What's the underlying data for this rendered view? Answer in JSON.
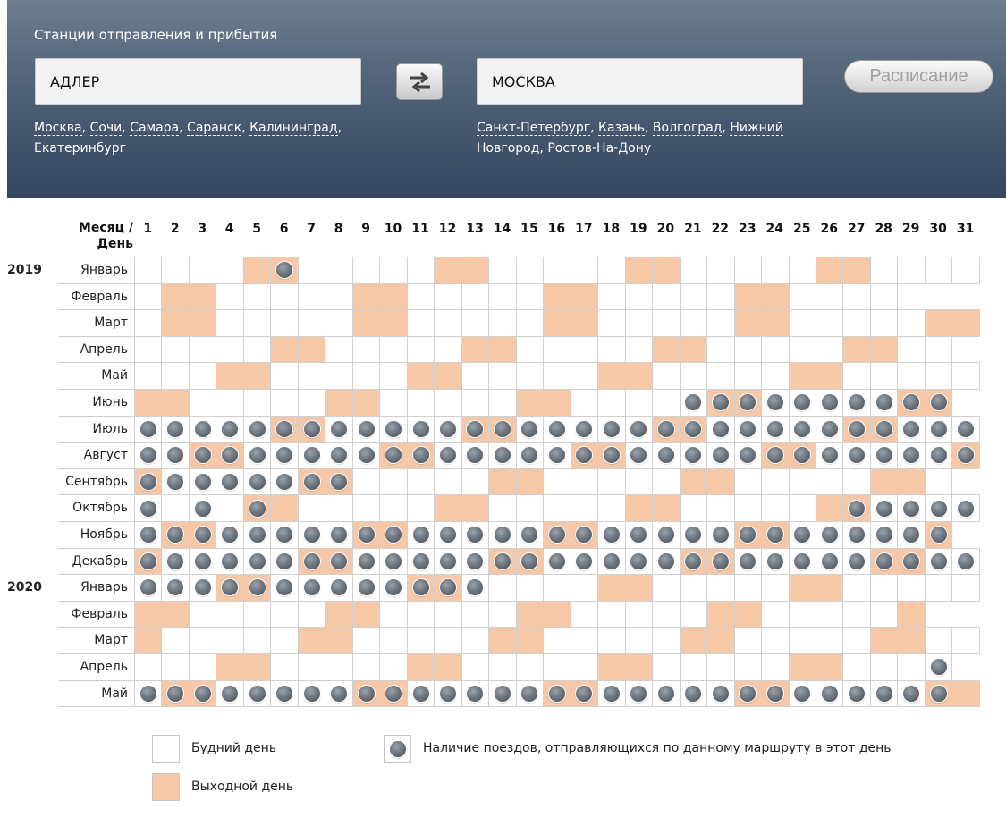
{
  "search": {
    "title": "Станции отправления и прибытия",
    "from_value": "АДЛЕР",
    "to_value": "МОСКВА",
    "submit_label": "Расписание",
    "from_suggestions": [
      "Москва",
      "Сочи",
      "Самара",
      "Саранск",
      "Калининград",
      "Екатеринбург"
    ],
    "to_suggestions": [
      "Санкт-Петербург",
      "Казань",
      "Волгоград",
      "Нижний Новгород",
      "Ростов-На-Дону"
    ]
  },
  "calendar": {
    "corner_label_1": "Месяц /",
    "corner_label_2": "День",
    "days": [
      "1",
      "2",
      "3",
      "4",
      "5",
      "6",
      "7",
      "8",
      "9",
      "10",
      "11",
      "12",
      "13",
      "14",
      "15",
      "16",
      "17",
      "18",
      "19",
      "20",
      "21",
      "22",
      "23",
      "24",
      "25",
      "26",
      "27",
      "28",
      "29",
      "30",
      "31"
    ],
    "months": [
      {
        "year": "2019",
        "name": "Январь",
        "days_in_month": 31,
        "weekends": [
          5,
          6,
          12,
          13,
          19,
          20,
          26,
          27
        ],
        "trains": [
          6
        ]
      },
      {
        "year": "",
        "name": "Февраль",
        "days_in_month": 28,
        "weekends": [
          2,
          3,
          9,
          10,
          16,
          17,
          23,
          24
        ],
        "trains": []
      },
      {
        "year": "",
        "name": "Март",
        "days_in_month": 31,
        "weekends": [
          2,
          3,
          9,
          10,
          16,
          17,
          23,
          24,
          30,
          31
        ],
        "trains": []
      },
      {
        "year": "",
        "name": "Апрель",
        "days_in_month": 30,
        "weekends": [
          6,
          7,
          13,
          14,
          20,
          21,
          27,
          28
        ],
        "trains": []
      },
      {
        "year": "",
        "name": "Май",
        "days_in_month": 31,
        "weekends": [
          4,
          5,
          11,
          12,
          18,
          19,
          25,
          26
        ],
        "trains": []
      },
      {
        "year": "",
        "name": "Июнь",
        "days_in_month": 30,
        "weekends": [
          1,
          2,
          8,
          9,
          15,
          16,
          22,
          23,
          29,
          30
        ],
        "trains": [
          21,
          22,
          23,
          24,
          25,
          26,
          27,
          28,
          29,
          30
        ]
      },
      {
        "year": "",
        "name": "Июль",
        "days_in_month": 31,
        "weekends": [
          6,
          7,
          13,
          14,
          20,
          21,
          27,
          28
        ],
        "trains": [
          1,
          2,
          3,
          4,
          5,
          6,
          7,
          8,
          9,
          10,
          11,
          12,
          13,
          14,
          15,
          16,
          17,
          18,
          19,
          20,
          21,
          22,
          23,
          24,
          25,
          26,
          27,
          28,
          29,
          30,
          31
        ]
      },
      {
        "year": "",
        "name": "Август",
        "days_in_month": 31,
        "weekends": [
          3,
          4,
          10,
          11,
          17,
          18,
          24,
          25,
          31
        ],
        "trains": [
          1,
          2,
          3,
          4,
          5,
          6,
          7,
          8,
          9,
          10,
          11,
          12,
          13,
          14,
          15,
          16,
          17,
          18,
          19,
          20,
          21,
          22,
          23,
          24,
          25,
          26,
          27,
          28,
          29,
          30,
          31
        ]
      },
      {
        "year": "",
        "name": "Сентябрь",
        "days_in_month": 30,
        "weekends": [
          1,
          7,
          8,
          14,
          15,
          21,
          22,
          28,
          29
        ],
        "trains": [
          1,
          2,
          3,
          4,
          5,
          6,
          7,
          8
        ]
      },
      {
        "year": "",
        "name": "Октябрь",
        "days_in_month": 31,
        "weekends": [
          5,
          6,
          12,
          13,
          19,
          20,
          26,
          27
        ],
        "trains": [
          1,
          3,
          5,
          27,
          28,
          29,
          30,
          31
        ]
      },
      {
        "year": "",
        "name": "Ноябрь",
        "days_in_month": 30,
        "weekends": [
          2,
          3,
          9,
          10,
          16,
          17,
          23,
          24,
          30
        ],
        "trains": [
          1,
          2,
          3,
          4,
          5,
          6,
          7,
          8,
          9,
          10,
          11,
          12,
          13,
          14,
          15,
          16,
          17,
          18,
          19,
          20,
          21,
          22,
          23,
          24,
          25,
          26,
          27,
          28,
          29,
          30
        ]
      },
      {
        "year": "",
        "name": "Декабрь",
        "days_in_month": 31,
        "weekends": [
          1,
          7,
          8,
          14,
          15,
          21,
          22,
          28,
          29
        ],
        "trains": [
          1,
          2,
          3,
          4,
          5,
          6,
          7,
          8,
          9,
          10,
          11,
          12,
          13,
          14,
          15,
          16,
          17,
          18,
          19,
          20,
          21,
          22,
          23,
          24,
          25,
          26,
          27,
          28,
          29,
          30,
          31
        ]
      },
      {
        "year": "2020",
        "name": "Январь",
        "days_in_month": 31,
        "weekends": [
          4,
          5,
          11,
          12,
          18,
          19,
          25,
          26
        ],
        "trains": [
          1,
          2,
          3,
          4,
          5,
          6,
          7,
          8,
          9,
          10,
          11,
          12,
          13
        ]
      },
      {
        "year": "",
        "name": "Февраль",
        "days_in_month": 29,
        "weekends": [
          1,
          2,
          8,
          9,
          15,
          16,
          22,
          23,
          29
        ],
        "trains": []
      },
      {
        "year": "",
        "name": "Март",
        "days_in_month": 31,
        "weekends": [
          1,
          7,
          8,
          14,
          15,
          21,
          22,
          28,
          29
        ],
        "trains": []
      },
      {
        "year": "",
        "name": "Апрель",
        "days_in_month": 30,
        "weekends": [
          4,
          5,
          11,
          12,
          18,
          19,
          25,
          26
        ],
        "trains": [
          30
        ]
      },
      {
        "year": "",
        "name": "Май",
        "days_in_month": 31,
        "weekends": [
          2,
          3,
          9,
          10,
          16,
          17,
          23,
          24,
          30,
          31
        ],
        "trains": [
          1,
          2,
          3,
          4,
          5,
          6,
          7,
          8,
          9,
          10,
          11,
          12,
          13,
          14,
          15,
          16,
          17,
          18,
          19,
          20,
          21,
          22,
          23,
          24,
          25,
          26,
          27,
          28,
          29,
          30
        ]
      }
    ]
  },
  "legend": {
    "weekday": "Будний день",
    "weekend": "Выходной день",
    "train": "Наличие поездов, отправляющихся по данному маршруту в этот день"
  },
  "colors": {
    "weekend": "#f7c8a8",
    "header_top": "#6d7e8f",
    "header_bottom": "#34465e"
  }
}
